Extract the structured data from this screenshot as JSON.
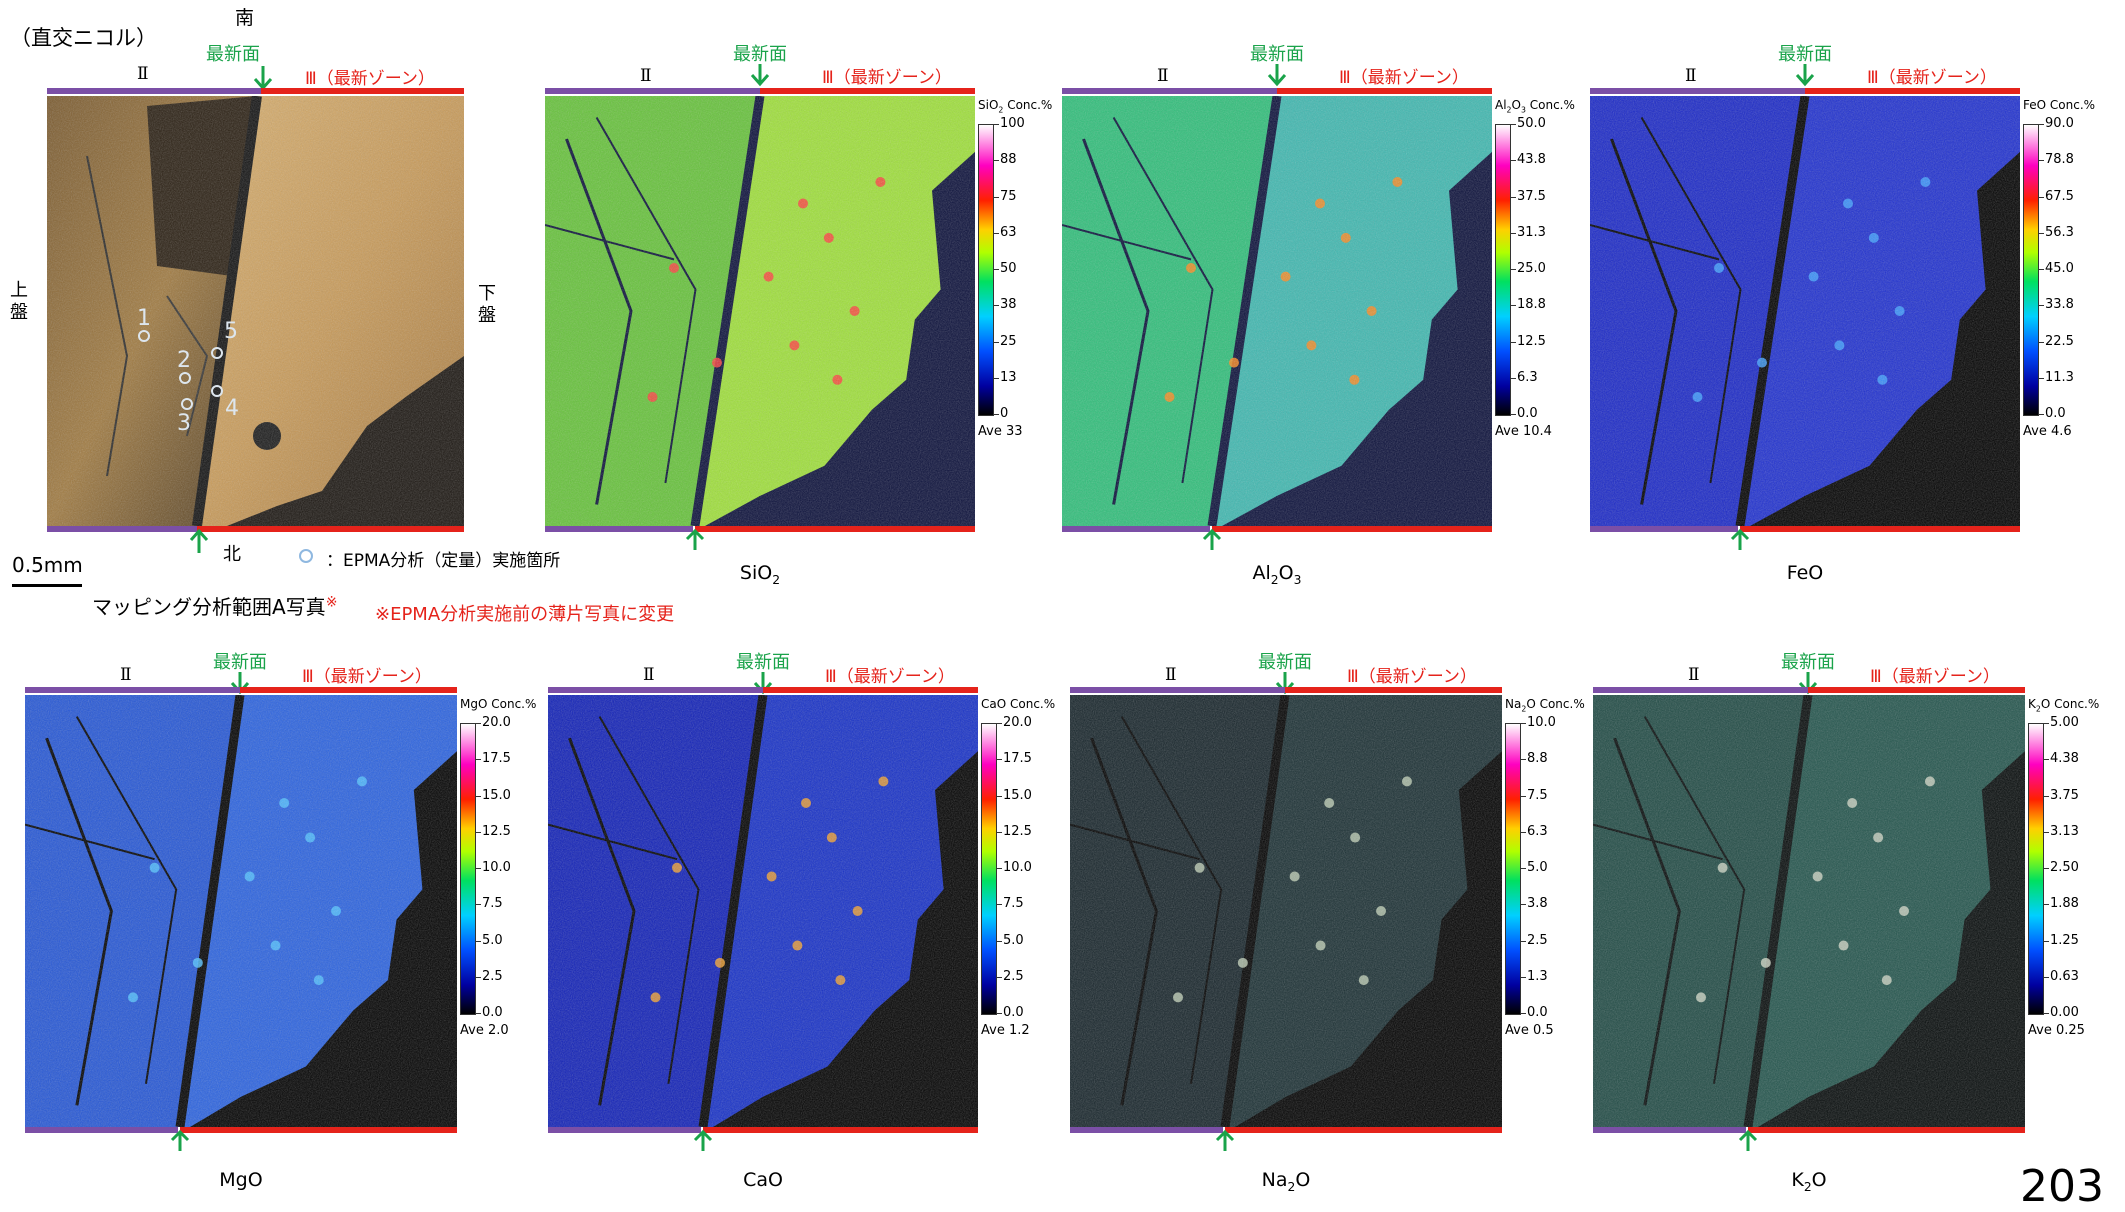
{
  "photo": {
    "mode_label": "（直交ニコル）",
    "south_label": "南",
    "north_label": "北",
    "upper_wall": [
      "上",
      "盤"
    ],
    "lower_wall": [
      "下",
      "盤"
    ],
    "points": [
      "1",
      "2",
      "3",
      "4",
      "5"
    ],
    "legend": "：EPMA分析（定量）実施箇所",
    "scale_label": "0.5mm",
    "caption": "マッピング分析範囲A写真",
    "caption_mark": "※",
    "note": "※EPMA分析実施前の薄片写真に変更"
  },
  "zones": {
    "zone2": "Ⅱ",
    "zone3": "Ⅲ（最新ゾーン）",
    "newest": "最新面"
  },
  "panels": [
    {
      "id": "sio2",
      "caption": "SiO",
      "sub": "2",
      "cb_title": "SiO",
      "cb_sub": "2",
      "cb_suffix": " Conc.%",
      "ticks": [
        "100",
        "88",
        "75",
        "63",
        "50",
        "38",
        "25",
        "13",
        "0"
      ],
      "ave": "Ave 33"
    },
    {
      "id": "al2o3",
      "caption": "Al",
      "sub": "2",
      "caption2": "O",
      "sub2": "3",
      "cb_title": "Al",
      "cb_sub": "2",
      "cb_title2": "O",
      "cb_sub2": "3",
      "cb_suffix": " Conc.%",
      "ticks": [
        "50.0",
        "43.8",
        "37.5",
        "31.3",
        "25.0",
        "18.8",
        "12.5",
        "6.3",
        "0.0"
      ],
      "ave": "Ave 10.4"
    },
    {
      "id": "feo",
      "caption": "FeO",
      "cb_title": "FeO",
      "cb_suffix": " Conc.%",
      "ticks": [
        "90.0",
        "78.8",
        "67.5",
        "56.3",
        "45.0",
        "33.8",
        "22.5",
        "11.3",
        "0.0"
      ],
      "ave": "Ave 4.6"
    },
    {
      "id": "mgo",
      "caption": "MgO",
      "cb_title": "MgO",
      "cb_suffix": " Conc.%",
      "ticks": [
        "20.0",
        "17.5",
        "15.0",
        "12.5",
        "10.0",
        "7.5",
        "5.0",
        "2.5",
        "0.0"
      ],
      "ave": "Ave 2.0"
    },
    {
      "id": "cao",
      "caption": "CaO",
      "cb_title": "CaO",
      "cb_suffix": " Conc.%",
      "ticks": [
        "20.0",
        "17.5",
        "15.0",
        "12.5",
        "10.0",
        "7.5",
        "5.0",
        "2.5",
        "0.0"
      ],
      "ave": "Ave 1.2"
    },
    {
      "id": "na2o",
      "caption": "Na",
      "sub": "2",
      "caption2": "O",
      "cb_title": "Na",
      "cb_sub": "2",
      "cb_title2": "O",
      "cb_suffix": " Conc.%",
      "ticks": [
        "10.0",
        "8.8",
        "7.5",
        "6.3",
        "5.0",
        "3.8",
        "2.5",
        "1.3",
        "0.0"
      ],
      "ave": "Ave 0.5"
    },
    {
      "id": "k2o",
      "caption": "K",
      "sub": "2",
      "caption2": "O",
      "cb_title": "K",
      "cb_sub": "2",
      "cb_title2": "O",
      "cb_suffix": " Conc.%",
      "ticks": [
        "5.00",
        "4.38",
        "3.75",
        "3.13",
        "2.50",
        "1.88",
        "1.25",
        "0.63",
        "0.00"
      ],
      "ave": "Ave 0.25"
    }
  ],
  "page_number": "203",
  "colors": {
    "zone2_bar": "#7b4fa6",
    "zone3_bar": "#e5231b",
    "newest_text": "#1aa34a"
  }
}
